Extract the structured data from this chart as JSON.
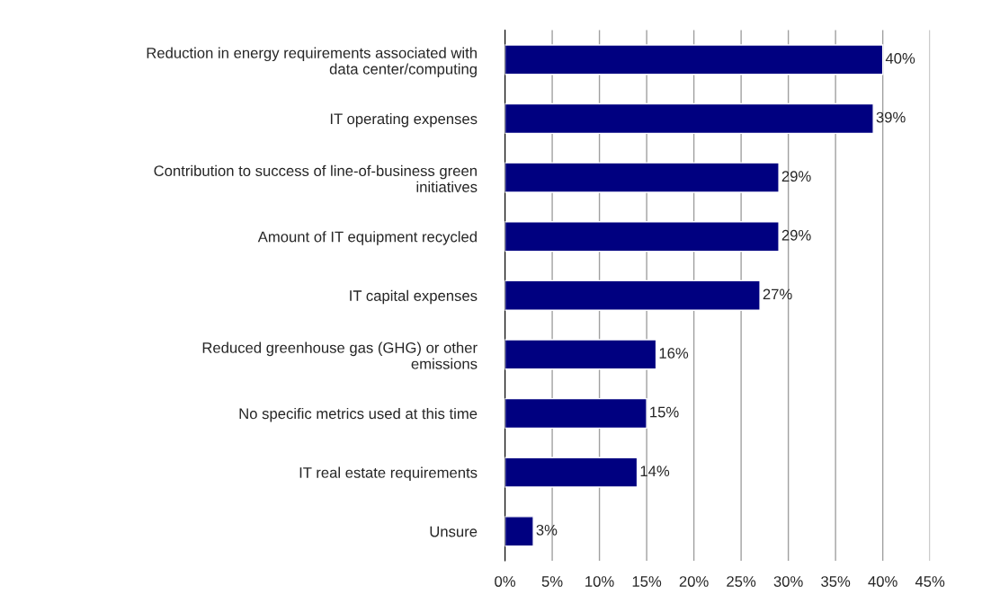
{
  "chart_data": {
    "type": "bar",
    "orientation": "horizontal",
    "categories": [
      "Reduction in energy requirements associated with\ndata center/computing",
      "IT operating expenses",
      "Contribution to success of line-of-business green\ninitiatives",
      "Amount of IT equipment recycled",
      "IT capital expenses",
      "Reduced greenhouse gas (GHG) or other\nemissions",
      "No specific metrics used at this time",
      "IT real estate requirements",
      "Unsure"
    ],
    "values": [
      40,
      39,
      29,
      29,
      27,
      16,
      15,
      14,
      3
    ],
    "value_labels": [
      "40%",
      "39%",
      "29%",
      "29%",
      "27%",
      "16%",
      "15%",
      "14%",
      "3%"
    ],
    "color": "#000080",
    "xlim": [
      0,
      45
    ],
    "xticks": [
      {
        "value": 0,
        "label": "0%"
      },
      {
        "value": 5,
        "label": "5%"
      },
      {
        "value": 10,
        "label": "10%"
      },
      {
        "value": 15,
        "label": "15%"
      },
      {
        "value": 20,
        "label": "20%"
      },
      {
        "value": 25,
        "label": "25%"
      },
      {
        "value": 30,
        "label": "30%"
      },
      {
        "value": 35,
        "label": "35%"
      },
      {
        "value": 40,
        "label": "40%"
      },
      {
        "value": 45,
        "label": "45%"
      }
    ],
    "grid": "x",
    "legend": false
  }
}
